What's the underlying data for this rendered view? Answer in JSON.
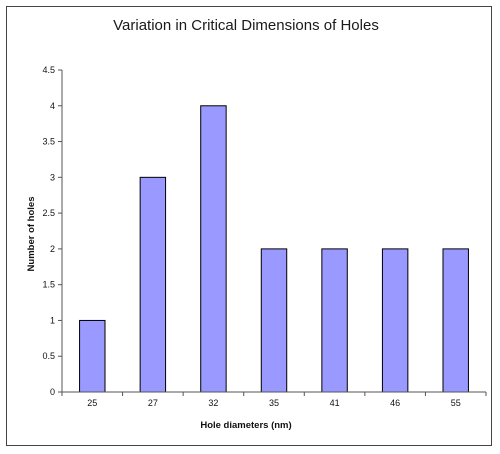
{
  "chart_data": {
    "type": "bar",
    "title": "Variation in Critical Dimensions of Holes",
    "xlabel": "Hole diameters (nm)",
    "ylabel": "Number of holes",
    "categories": [
      "25",
      "27",
      "32",
      "35",
      "41",
      "46",
      "55"
    ],
    "values": [
      1,
      3,
      4,
      2,
      2,
      2,
      2
    ],
    "ylim": [
      0,
      4.5
    ],
    "yticks": [
      "0",
      "0.5",
      "1",
      "1.5",
      "2",
      "2.5",
      "3",
      "3.5",
      "4",
      "4.5"
    ],
    "grid": false,
    "legend": "none",
    "bar_color": "#9999ff",
    "bar_edge_color": "#000000"
  }
}
